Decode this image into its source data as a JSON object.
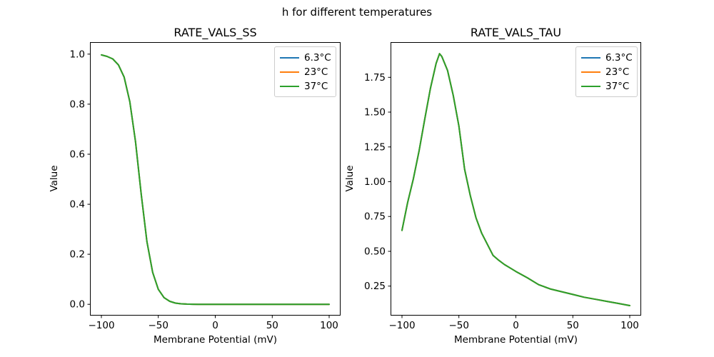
{
  "figure": {
    "title": "h for different temperatures",
    "background_color": "#ffffff",
    "text_color": "#000000"
  },
  "chart_data": [
    {
      "type": "line",
      "title": "RATE_VALS_SS",
      "xlabel": "Membrane Potential (mV)",
      "ylabel": "Value",
      "xlim": [
        -110,
        110
      ],
      "ylim": [
        -0.045,
        1.048
      ],
      "grid": false,
      "legend_position": "upper right",
      "note": "All three temperature curves overlap exactly; the green 37°C line is drawn on top.",
      "xticks": [
        {
          "v": -100,
          "label": "−100"
        },
        {
          "v": -50,
          "label": "−50"
        },
        {
          "v": 0,
          "label": "0"
        },
        {
          "v": 50,
          "label": "50"
        },
        {
          "v": 100,
          "label": "100"
        }
      ],
      "yticks": [
        {
          "v": 0.0,
          "label": "0.0"
        },
        {
          "v": 0.2,
          "label": "0.2"
        },
        {
          "v": 0.4,
          "label": "0.4"
        },
        {
          "v": 0.6,
          "label": "0.6"
        },
        {
          "v": 0.8,
          "label": "0.8"
        },
        {
          "v": 1.0,
          "label": "1.0"
        }
      ],
      "x": [
        -100,
        -95,
        -90,
        -85,
        -80,
        -75,
        -70,
        -65,
        -60,
        -55,
        -50,
        -45,
        -40,
        -35,
        -30,
        -25,
        -20,
        -15,
        -10,
        -5,
        0,
        10,
        20,
        30,
        40,
        50,
        60,
        70,
        80,
        90,
        100
      ],
      "series": [
        {
          "name": "6.3°C",
          "color": "#1f77b4",
          "values": [
            0.997,
            0.991,
            0.981,
            0.957,
            0.908,
            0.81,
            0.65,
            0.44,
            0.25,
            0.128,
            0.06,
            0.027,
            0.012,
            0.005,
            0.002,
            0.001,
            0.0005,
            0.0002,
            0.0001,
            0.0001,
            0,
            0,
            0,
            0,
            0,
            0,
            0,
            0,
            0,
            0,
            0
          ]
        },
        {
          "name": "23°C",
          "color": "#ff7f0e",
          "values": [
            0.997,
            0.991,
            0.981,
            0.957,
            0.908,
            0.81,
            0.65,
            0.44,
            0.25,
            0.128,
            0.06,
            0.027,
            0.012,
            0.005,
            0.002,
            0.001,
            0.0005,
            0.0002,
            0.0001,
            0.0001,
            0,
            0,
            0,
            0,
            0,
            0,
            0,
            0,
            0,
            0,
            0
          ]
        },
        {
          "name": "37°C",
          "color": "#2ca02c",
          "values": [
            0.997,
            0.991,
            0.981,
            0.957,
            0.908,
            0.81,
            0.65,
            0.44,
            0.25,
            0.128,
            0.06,
            0.027,
            0.012,
            0.005,
            0.002,
            0.001,
            0.0005,
            0.0002,
            0.0001,
            0.0001,
            0,
            0,
            0,
            0,
            0,
            0,
            0,
            0,
            0,
            0,
            0
          ]
        }
      ]
    },
    {
      "type": "line",
      "title": "RATE_VALS_TAU",
      "xlabel": "Membrane Potential (mV)",
      "ylabel": "Value",
      "xlim": [
        -110,
        110
      ],
      "ylim": [
        0.038,
        2.003
      ],
      "grid": false,
      "legend_position": "upper right",
      "note": "All three temperature curves overlap exactly; peak ≈1.92 near −67 mV.",
      "xticks": [
        {
          "v": -100,
          "label": "−100"
        },
        {
          "v": -50,
          "label": "−50"
        },
        {
          "v": 0,
          "label": "0"
        },
        {
          "v": 50,
          "label": "50"
        },
        {
          "v": 100,
          "label": "100"
        }
      ],
      "yticks": [
        {
          "v": 0.25,
          "label": "0.25"
        },
        {
          "v": 0.5,
          "label": "0.50"
        },
        {
          "v": 0.75,
          "label": "0.75"
        },
        {
          "v": 1.0,
          "label": "1.00"
        },
        {
          "v": 1.25,
          "label": "1.25"
        },
        {
          "v": 1.5,
          "label": "1.50"
        },
        {
          "v": 1.75,
          "label": "1.75"
        }
      ],
      "x": [
        -100,
        -95,
        -90,
        -85,
        -80,
        -75,
        -70,
        -67,
        -65,
        -60,
        -55,
        -50,
        -45,
        -40,
        -35,
        -30,
        -25,
        -20,
        -15,
        -10,
        -5,
        0,
        10,
        20,
        30,
        40,
        50,
        60,
        70,
        80,
        90,
        100
      ],
      "series": [
        {
          "name": "6.3°C",
          "color": "#1f77b4",
          "values": [
            0.65,
            0.85,
            1.02,
            1.22,
            1.45,
            1.67,
            1.85,
            1.92,
            1.9,
            1.8,
            1.62,
            1.4,
            1.09,
            0.9,
            0.74,
            0.63,
            0.55,
            0.47,
            0.435,
            0.405,
            0.38,
            0.355,
            0.31,
            0.26,
            0.23,
            0.21,
            0.19,
            0.17,
            0.155,
            0.14,
            0.125,
            0.11
          ]
        },
        {
          "name": "23°C",
          "color": "#ff7f0e",
          "values": [
            0.65,
            0.85,
            1.02,
            1.22,
            1.45,
            1.67,
            1.85,
            1.92,
            1.9,
            1.8,
            1.62,
            1.4,
            1.09,
            0.9,
            0.74,
            0.63,
            0.55,
            0.47,
            0.435,
            0.405,
            0.38,
            0.355,
            0.31,
            0.26,
            0.23,
            0.21,
            0.19,
            0.17,
            0.155,
            0.14,
            0.125,
            0.11
          ]
        },
        {
          "name": "37°C",
          "color": "#2ca02c",
          "values": [
            0.65,
            0.85,
            1.02,
            1.22,
            1.45,
            1.67,
            1.85,
            1.92,
            1.9,
            1.8,
            1.62,
            1.4,
            1.09,
            0.9,
            0.74,
            0.63,
            0.55,
            0.47,
            0.435,
            0.405,
            0.38,
            0.355,
            0.31,
            0.26,
            0.23,
            0.21,
            0.19,
            0.17,
            0.155,
            0.14,
            0.125,
            0.11
          ]
        }
      ]
    }
  ]
}
